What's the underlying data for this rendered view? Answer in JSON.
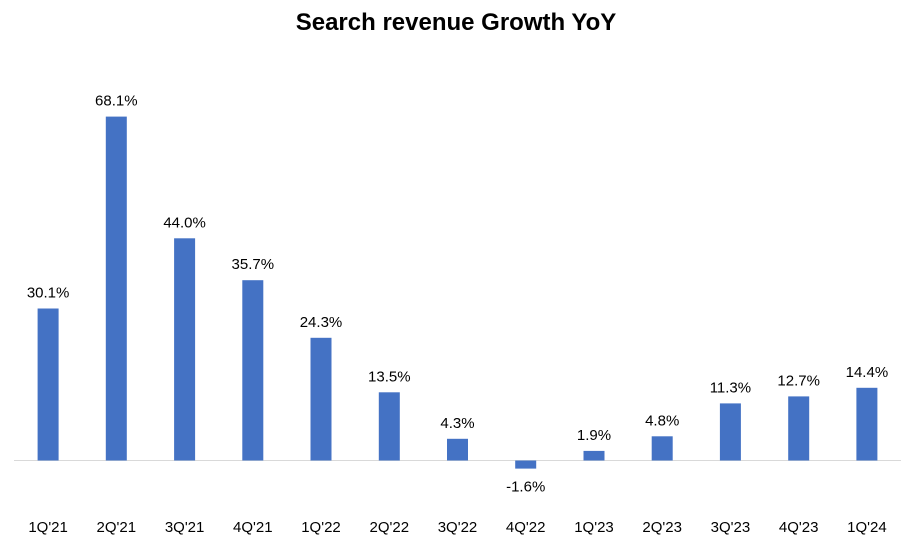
{
  "chart_data": {
    "type": "bar",
    "title": "Search revenue Growth YoY",
    "xlabel": "",
    "ylabel": "",
    "categories": [
      "1Q'21",
      "2Q'21",
      "3Q'21",
      "4Q'21",
      "1Q'22",
      "2Q'22",
      "3Q'22",
      "4Q'22",
      "1Q'23",
      "2Q'23",
      "3Q'23",
      "4Q'23",
      "1Q'24"
    ],
    "values": [
      30.1,
      68.1,
      44.0,
      35.7,
      24.3,
      13.5,
      4.3,
      -1.6,
      1.9,
      4.8,
      11.3,
      12.7,
      14.4
    ],
    "data_labels": [
      "30.1%",
      "68.1%",
      "44.0%",
      "35.7%",
      "24.3%",
      "13.5%",
      "4.3%",
      "-1.6%",
      "1.9%",
      "4.8%",
      "11.3%",
      "12.7%",
      "14.4%"
    ],
    "unit": "%",
    "grid": false,
    "legend": "none",
    "colors": {
      "bar": "#4472C4",
      "axis": "#D9D9D9",
      "text": "#000000"
    }
  }
}
